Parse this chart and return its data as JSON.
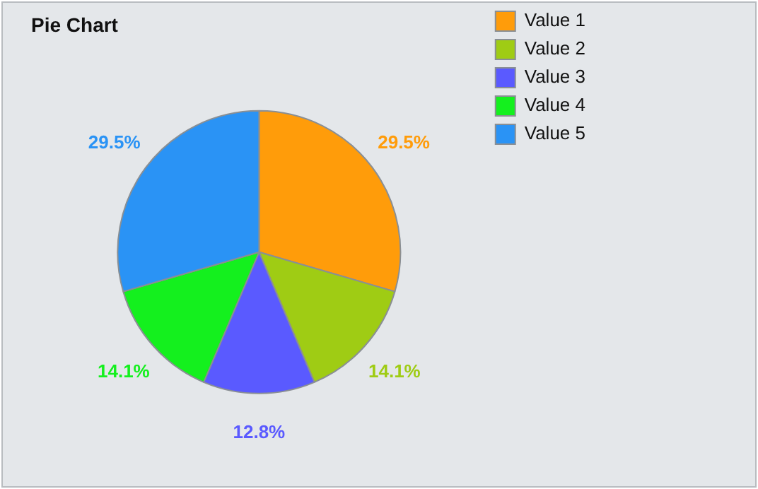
{
  "chart_data": {
    "type": "pie",
    "title": "Pie Chart",
    "categories": [
      "Value 1",
      "Value 2",
      "Value 3",
      "Value 4",
      "Value 5"
    ],
    "values": [
      29.5,
      14.1,
      12.8,
      14.1,
      29.5
    ],
    "colors": [
      "#ff9c0a",
      "#9fcc14",
      "#5a5aff",
      "#14f01e",
      "#2a93f5"
    ],
    "value_labels": [
      "29.5%",
      "14.1%",
      "12.8%",
      "14.1%",
      "29.5%"
    ],
    "legend": "top right"
  }
}
